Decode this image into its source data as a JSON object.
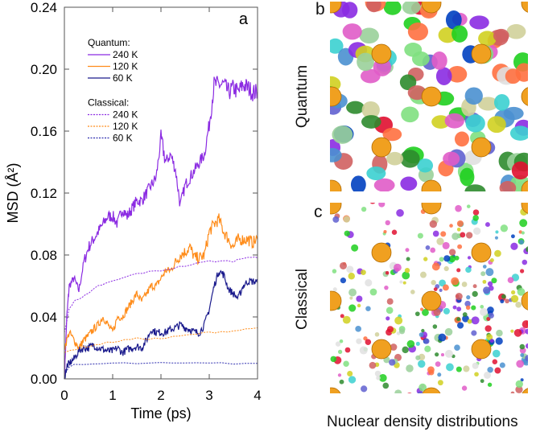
{
  "chart_data": {
    "type": "line",
    "panel_label": "a",
    "xlabel": "Time (ps)",
    "ylabel": "MSD (Å²)",
    "xlim": [
      0,
      4
    ],
    "ylim": [
      0,
      0.24
    ],
    "xticks": [
      "0",
      "1",
      "2",
      "3",
      "4"
    ],
    "yticks": [
      "0.00",
      "0.04",
      "0.08",
      "0.12",
      "0.16",
      "0.20",
      "0.24"
    ],
    "legend_position": "top-left",
    "legend_groups": [
      {
        "title": "Quantum:",
        "entries": [
          "240 K",
          "120 K",
          "60 K"
        ]
      },
      {
        "title": "Classical:",
        "entries": [
          "240 K",
          "120 K",
          "60  K"
        ]
      }
    ],
    "series": [
      {
        "name": "Quantum 240 K",
        "color": "#8b2be2",
        "dash": false,
        "x": [
          0,
          0.05,
          0.1,
          0.2,
          0.3,
          0.4,
          0.5,
          0.6,
          0.7,
          0.8,
          0.9,
          1.0,
          1.1,
          1.2,
          1.3,
          1.4,
          1.5,
          1.6,
          1.7,
          1.8,
          1.9,
          2.0,
          2.1,
          2.2,
          2.3,
          2.4,
          2.5,
          2.6,
          2.7,
          2.8,
          2.9,
          3.0,
          3.1,
          3.2,
          3.3,
          3.4,
          3.5,
          3.6,
          3.7,
          3.8,
          3.9,
          4.0
        ],
        "y": [
          0,
          0.04,
          0.06,
          0.065,
          0.057,
          0.075,
          0.085,
          0.09,
          0.095,
          0.1,
          0.105,
          0.105,
          0.1,
          0.11,
          0.105,
          0.11,
          0.115,
          0.115,
          0.12,
          0.125,
          0.13,
          0.155,
          0.14,
          0.145,
          0.135,
          0.112,
          0.125,
          0.13,
          0.135,
          0.14,
          0.145,
          0.165,
          0.19,
          0.19,
          0.19,
          0.185,
          0.188,
          0.185,
          0.19,
          0.188,
          0.185,
          0.185
        ]
      },
      {
        "name": "Quantum 120 K",
        "color": "#ff8c1a",
        "dash": false,
        "x": [
          0,
          0.1,
          0.2,
          0.3,
          0.4,
          0.5,
          0.6,
          0.7,
          0.8,
          0.9,
          1.0,
          1.1,
          1.2,
          1.3,
          1.4,
          1.5,
          1.6,
          1.7,
          1.8,
          1.9,
          2.0,
          2.1,
          2.2,
          2.3,
          2.4,
          2.5,
          2.6,
          2.7,
          2.8,
          2.9,
          3.0,
          3.1,
          3.2,
          3.3,
          3.4,
          3.5,
          3.6,
          3.7,
          3.8,
          3.9,
          4.0
        ],
        "y": [
          0.02,
          0.03,
          0.025,
          0.02,
          0.025,
          0.028,
          0.032,
          0.035,
          0.04,
          0.035,
          0.03,
          0.04,
          0.04,
          0.045,
          0.05,
          0.055,
          0.05,
          0.055,
          0.06,
          0.06,
          0.065,
          0.07,
          0.07,
          0.075,
          0.08,
          0.082,
          0.085,
          0.078,
          0.078,
          0.08,
          0.095,
          0.1,
          0.103,
          0.095,
          0.09,
          0.085,
          0.09,
          0.09,
          0.09,
          0.088,
          0.09
        ]
      },
      {
        "name": "Quantum 60 K",
        "color": "#1a1a8c",
        "dash": false,
        "x": [
          0,
          0.05,
          0.1,
          0.2,
          0.3,
          0.4,
          0.5,
          0.6,
          0.7,
          0.8,
          0.9,
          1.0,
          1.1,
          1.2,
          1.3,
          1.4,
          1.5,
          1.6,
          1.7,
          1.8,
          1.9,
          2.0,
          2.1,
          2.2,
          2.3,
          2.4,
          2.5,
          2.6,
          2.7,
          2.8,
          2.9,
          3.0,
          3.1,
          3.2,
          3.3,
          3.4,
          3.5,
          3.6,
          3.7,
          3.8,
          3.9,
          4.0
        ],
        "y": [
          0,
          0.008,
          0.01,
          0.013,
          0.018,
          0.02,
          0.02,
          0.022,
          0.02,
          0.019,
          0.018,
          0.018,
          0.02,
          0.017,
          0.019,
          0.02,
          0.021,
          0.02,
          0.025,
          0.032,
          0.03,
          0.03,
          0.03,
          0.032,
          0.033,
          0.035,
          0.033,
          0.032,
          0.03,
          0.03,
          0.035,
          0.045,
          0.06,
          0.07,
          0.067,
          0.058,
          0.055,
          0.052,
          0.06,
          0.063,
          0.063,
          0.062
        ]
      },
      {
        "name": "Classical 240 K",
        "color": "#8b2be2",
        "dash": true,
        "x": [
          0,
          0.1,
          0.2,
          0.3,
          0.5,
          0.7,
          1.0,
          1.5,
          2.0,
          2.5,
          3.0,
          3.5,
          3.8,
          4.0
        ],
        "y": [
          0.03,
          0.045,
          0.05,
          0.052,
          0.055,
          0.06,
          0.063,
          0.068,
          0.07,
          0.073,
          0.076,
          0.076,
          0.079,
          0.078
        ]
      },
      {
        "name": "Classical 120 K",
        "color": "#ff8c1a",
        "dash": true,
        "x": [
          0,
          0.3,
          0.5,
          1.0,
          1.5,
          2.0,
          2.5,
          3.0,
          3.5,
          4.0
        ],
        "y": [
          0.017,
          0.02,
          0.021,
          0.024,
          0.026,
          0.026,
          0.028,
          0.03,
          0.031,
          0.033
        ]
      },
      {
        "name": "Classical 60 K",
        "color": "#3030b0",
        "dash": true,
        "x": [
          0,
          0.2,
          1,
          2,
          3,
          4
        ],
        "y": [
          0.005,
          0.009,
          0.01,
          0.01,
          0.01,
          0.01
        ]
      }
    ]
  },
  "panels": {
    "b_label": "b",
    "c_label": "c",
    "quantum_label": "Quantum",
    "classical_label": "Classical",
    "bottom_caption": "Nuclear density distributions",
    "sphere_color": "#f0a020"
  }
}
